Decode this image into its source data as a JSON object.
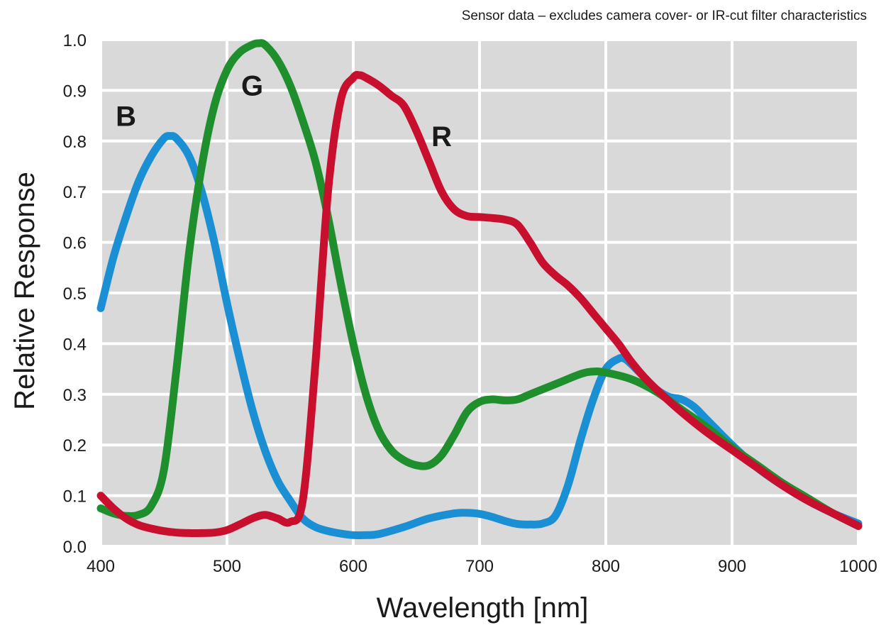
{
  "chart_data": {
    "type": "line",
    "subtitle": "Sensor data – excludes camera cover- or IR-cut filter characteristics",
    "xlabel": "Wavelength [nm]",
    "ylabel": "Relative Response",
    "xlim": [
      400,
      1000
    ],
    "ylim": [
      0,
      1.0
    ],
    "xticks": [
      400,
      500,
      600,
      700,
      800,
      900,
      1000
    ],
    "yticks": [
      "0.0",
      "0.1",
      "0.2",
      "0.3",
      "0.4",
      "0.5",
      "0.6",
      "0.7",
      "0.8",
      "0.9",
      "1.0"
    ],
    "grid": true,
    "background_color": "#d9d9d9",
    "grid_color": "#ffffff",
    "series": [
      {
        "name": "B",
        "color": "#1a8fd4",
        "x": [
          400,
          410,
          420,
          430,
          440,
          450,
          455,
          460,
          470,
          480,
          490,
          500,
          510,
          520,
          530,
          540,
          550,
          560,
          570,
          580,
          590,
          600,
          610,
          620,
          640,
          660,
          680,
          690,
          700,
          710,
          720,
          730,
          740,
          750,
          760,
          770,
          780,
          790,
          800,
          810,
          815,
          820,
          830,
          840,
          850,
          860,
          870,
          880,
          900,
          920,
          940,
          960,
          980,
          1000
        ],
        "y": [
          0.47,
          0.57,
          0.65,
          0.72,
          0.77,
          0.805,
          0.81,
          0.805,
          0.77,
          0.7,
          0.6,
          0.48,
          0.37,
          0.27,
          0.19,
          0.13,
          0.09,
          0.055,
          0.038,
          0.03,
          0.025,
          0.022,
          0.022,
          0.024,
          0.038,
          0.055,
          0.065,
          0.066,
          0.064,
          0.058,
          0.05,
          0.044,
          0.043,
          0.045,
          0.06,
          0.12,
          0.21,
          0.29,
          0.35,
          0.37,
          0.37,
          0.36,
          0.335,
          0.31,
          0.295,
          0.29,
          0.275,
          0.25,
          0.2,
          0.155,
          0.12,
          0.09,
          0.065,
          0.045
        ]
      },
      {
        "name": "G",
        "color": "#1f8f2e",
        "x": [
          400,
          410,
          420,
          430,
          440,
          450,
          460,
          470,
          480,
          490,
          500,
          510,
          520,
          525,
          530,
          540,
          550,
          560,
          570,
          580,
          590,
          600,
          610,
          620,
          630,
          640,
          650,
          660,
          670,
          680,
          690,
          700,
          710,
          720,
          730,
          740,
          760,
          780,
          790,
          800,
          820,
          840,
          860,
          880,
          900,
          920,
          940,
          960,
          980,
          1000
        ],
        "y": [
          0.075,
          0.065,
          0.06,
          0.062,
          0.08,
          0.15,
          0.35,
          0.58,
          0.75,
          0.87,
          0.94,
          0.975,
          0.99,
          0.993,
          0.99,
          0.96,
          0.91,
          0.84,
          0.76,
          0.65,
          0.52,
          0.4,
          0.3,
          0.23,
          0.19,
          0.17,
          0.16,
          0.16,
          0.18,
          0.22,
          0.265,
          0.285,
          0.29,
          0.288,
          0.29,
          0.3,
          0.32,
          0.34,
          0.345,
          0.343,
          0.33,
          0.305,
          0.27,
          0.235,
          0.195,
          0.16,
          0.125,
          0.095,
          0.065,
          0.04
        ]
      },
      {
        "name": "R",
        "color": "#c8102e",
        "x": [
          400,
          410,
          420,
          430,
          440,
          450,
          460,
          470,
          480,
          490,
          500,
          510,
          520,
          530,
          540,
          550,
          560,
          570,
          580,
          590,
          600,
          605,
          610,
          620,
          630,
          640,
          650,
          660,
          670,
          680,
          690,
          700,
          710,
          720,
          730,
          740,
          750,
          760,
          770,
          780,
          790,
          800,
          810,
          820,
          830,
          840,
          860,
          880,
          900,
          920,
          940,
          960,
          980,
          1000
        ],
        "y": [
          0.1,
          0.075,
          0.055,
          0.042,
          0.035,
          0.03,
          0.027,
          0.026,
          0.026,
          0.027,
          0.032,
          0.043,
          0.055,
          0.062,
          0.055,
          0.048,
          0.09,
          0.36,
          0.7,
          0.88,
          0.925,
          0.93,
          0.925,
          0.91,
          0.89,
          0.87,
          0.82,
          0.76,
          0.7,
          0.665,
          0.652,
          0.65,
          0.648,
          0.645,
          0.635,
          0.6,
          0.56,
          0.535,
          0.515,
          0.49,
          0.46,
          0.43,
          0.4,
          0.365,
          0.335,
          0.31,
          0.265,
          0.225,
          0.19,
          0.155,
          0.12,
          0.09,
          0.065,
          0.04
        ]
      }
    ],
    "series_label_positions": [
      {
        "name": "B",
        "x": 420,
        "y": 0.83
      },
      {
        "name": "G",
        "x": 520,
        "y": 0.89
      },
      {
        "name": "R",
        "x": 670,
        "y": 0.79
      }
    ]
  }
}
